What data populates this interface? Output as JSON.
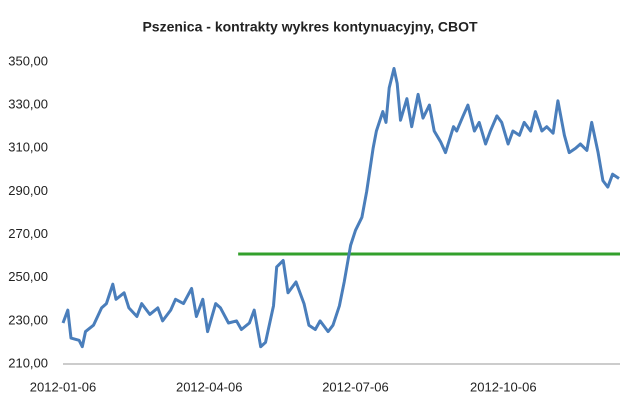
{
  "chart_data": {
    "type": "line",
    "title": "Pszenica - kontrakty wykres kontynuacyjny, CBOT",
    "x": [
      "2012-01-06",
      "2012-01-09",
      "2012-01-11",
      "2012-01-16",
      "2012-01-18",
      "2012-01-20",
      "2012-01-25",
      "2012-01-30",
      "2012-02-02",
      "2012-02-06",
      "2012-02-08",
      "2012-02-13",
      "2012-02-16",
      "2012-02-21",
      "2012-02-24",
      "2012-02-29",
      "2012-03-05",
      "2012-03-08",
      "2012-03-13",
      "2012-03-16",
      "2012-03-21",
      "2012-03-26",
      "2012-03-29",
      "2012-04-02",
      "2012-04-05",
      "2012-04-10",
      "2012-04-13",
      "2012-04-18",
      "2012-04-23",
      "2012-04-26",
      "2012-05-01",
      "2012-05-04",
      "2012-05-08",
      "2012-05-11",
      "2012-05-16",
      "2012-05-18",
      "2012-05-22",
      "2012-05-25",
      "2012-05-30",
      "2012-06-04",
      "2012-06-07",
      "2012-06-11",
      "2012-06-14",
      "2012-06-19",
      "2012-06-22",
      "2012-06-26",
      "2012-06-29",
      "2012-07-03",
      "2012-07-06",
      "2012-07-10",
      "2012-07-13",
      "2012-07-17",
      "2012-07-19",
      "2012-07-23",
      "2012-07-25",
      "2012-07-27",
      "2012-07-30",
      "2012-08-01",
      "2012-08-03",
      "2012-08-07",
      "2012-08-10",
      "2012-08-14",
      "2012-08-17",
      "2012-08-21",
      "2012-08-24",
      "2012-08-28",
      "2012-08-31",
      "2012-09-05",
      "2012-09-07",
      "2012-09-11",
      "2012-09-14",
      "2012-09-18",
      "2012-09-21",
      "2012-09-25",
      "2012-09-28",
      "2012-10-02",
      "2012-10-05",
      "2012-10-09",
      "2012-10-12",
      "2012-10-16",
      "2012-10-19",
      "2012-10-23",
      "2012-10-26",
      "2012-10-30",
      "2012-11-02",
      "2012-11-06",
      "2012-11-09",
      "2012-11-13",
      "2012-11-16",
      "2012-11-20",
      "2012-11-23",
      "2012-11-27",
      "2012-11-30",
      "2012-12-04",
      "2012-12-07",
      "2012-12-10",
      "2012-12-13",
      "2012-12-17"
    ],
    "series": [
      {
        "color": "#4a7ebb",
        "values": [
          229,
          235,
          222,
          221,
          218,
          225,
          228,
          236,
          238,
          247,
          240,
          243,
          236,
          232,
          238,
          233,
          236,
          230,
          235,
          240,
          238,
          245,
          232,
          240,
          225,
          238,
          236,
          229,
          230,
          226,
          229,
          235,
          218,
          220,
          237,
          255,
          258,
          243,
          248,
          238,
          228,
          226,
          230,
          225,
          228,
          237,
          248,
          265,
          272,
          278,
          290,
          310,
          318,
          327,
          322,
          338,
          347,
          340,
          323,
          333,
          320,
          335,
          324,
          330,
          318,
          313,
          308,
          320,
          318,
          325,
          330,
          318,
          322,
          312,
          318,
          325,
          322,
          312,
          318,
          316,
          322,
          318,
          327,
          318,
          320,
          317,
          332,
          316,
          308,
          310,
          312,
          309,
          322,
          308,
          295,
          292,
          298,
          296
        ]
      }
    ],
    "reference_line": {
      "value": 261,
      "from": "2012-04-24",
      "color": "#33a02c"
    },
    "xlim": [
      "2012-01-06",
      "2012-12-17"
    ],
    "xticks": [
      "2012-01-06",
      "2012-04-06",
      "2012-07-06",
      "2012-10-06"
    ],
    "ylim": [
      210,
      350
    ],
    "yticks": [
      {
        "value": 210,
        "label": "210,00"
      },
      {
        "value": 230,
        "label": "230,00"
      },
      {
        "value": 250,
        "label": "250,00"
      },
      {
        "value": 270,
        "label": "270,00"
      },
      {
        "value": 290,
        "label": "290,00"
      },
      {
        "value": 310,
        "label": "310,00"
      },
      {
        "value": 330,
        "label": "330,00"
      },
      {
        "value": 350,
        "label": "350,00"
      }
    ]
  }
}
